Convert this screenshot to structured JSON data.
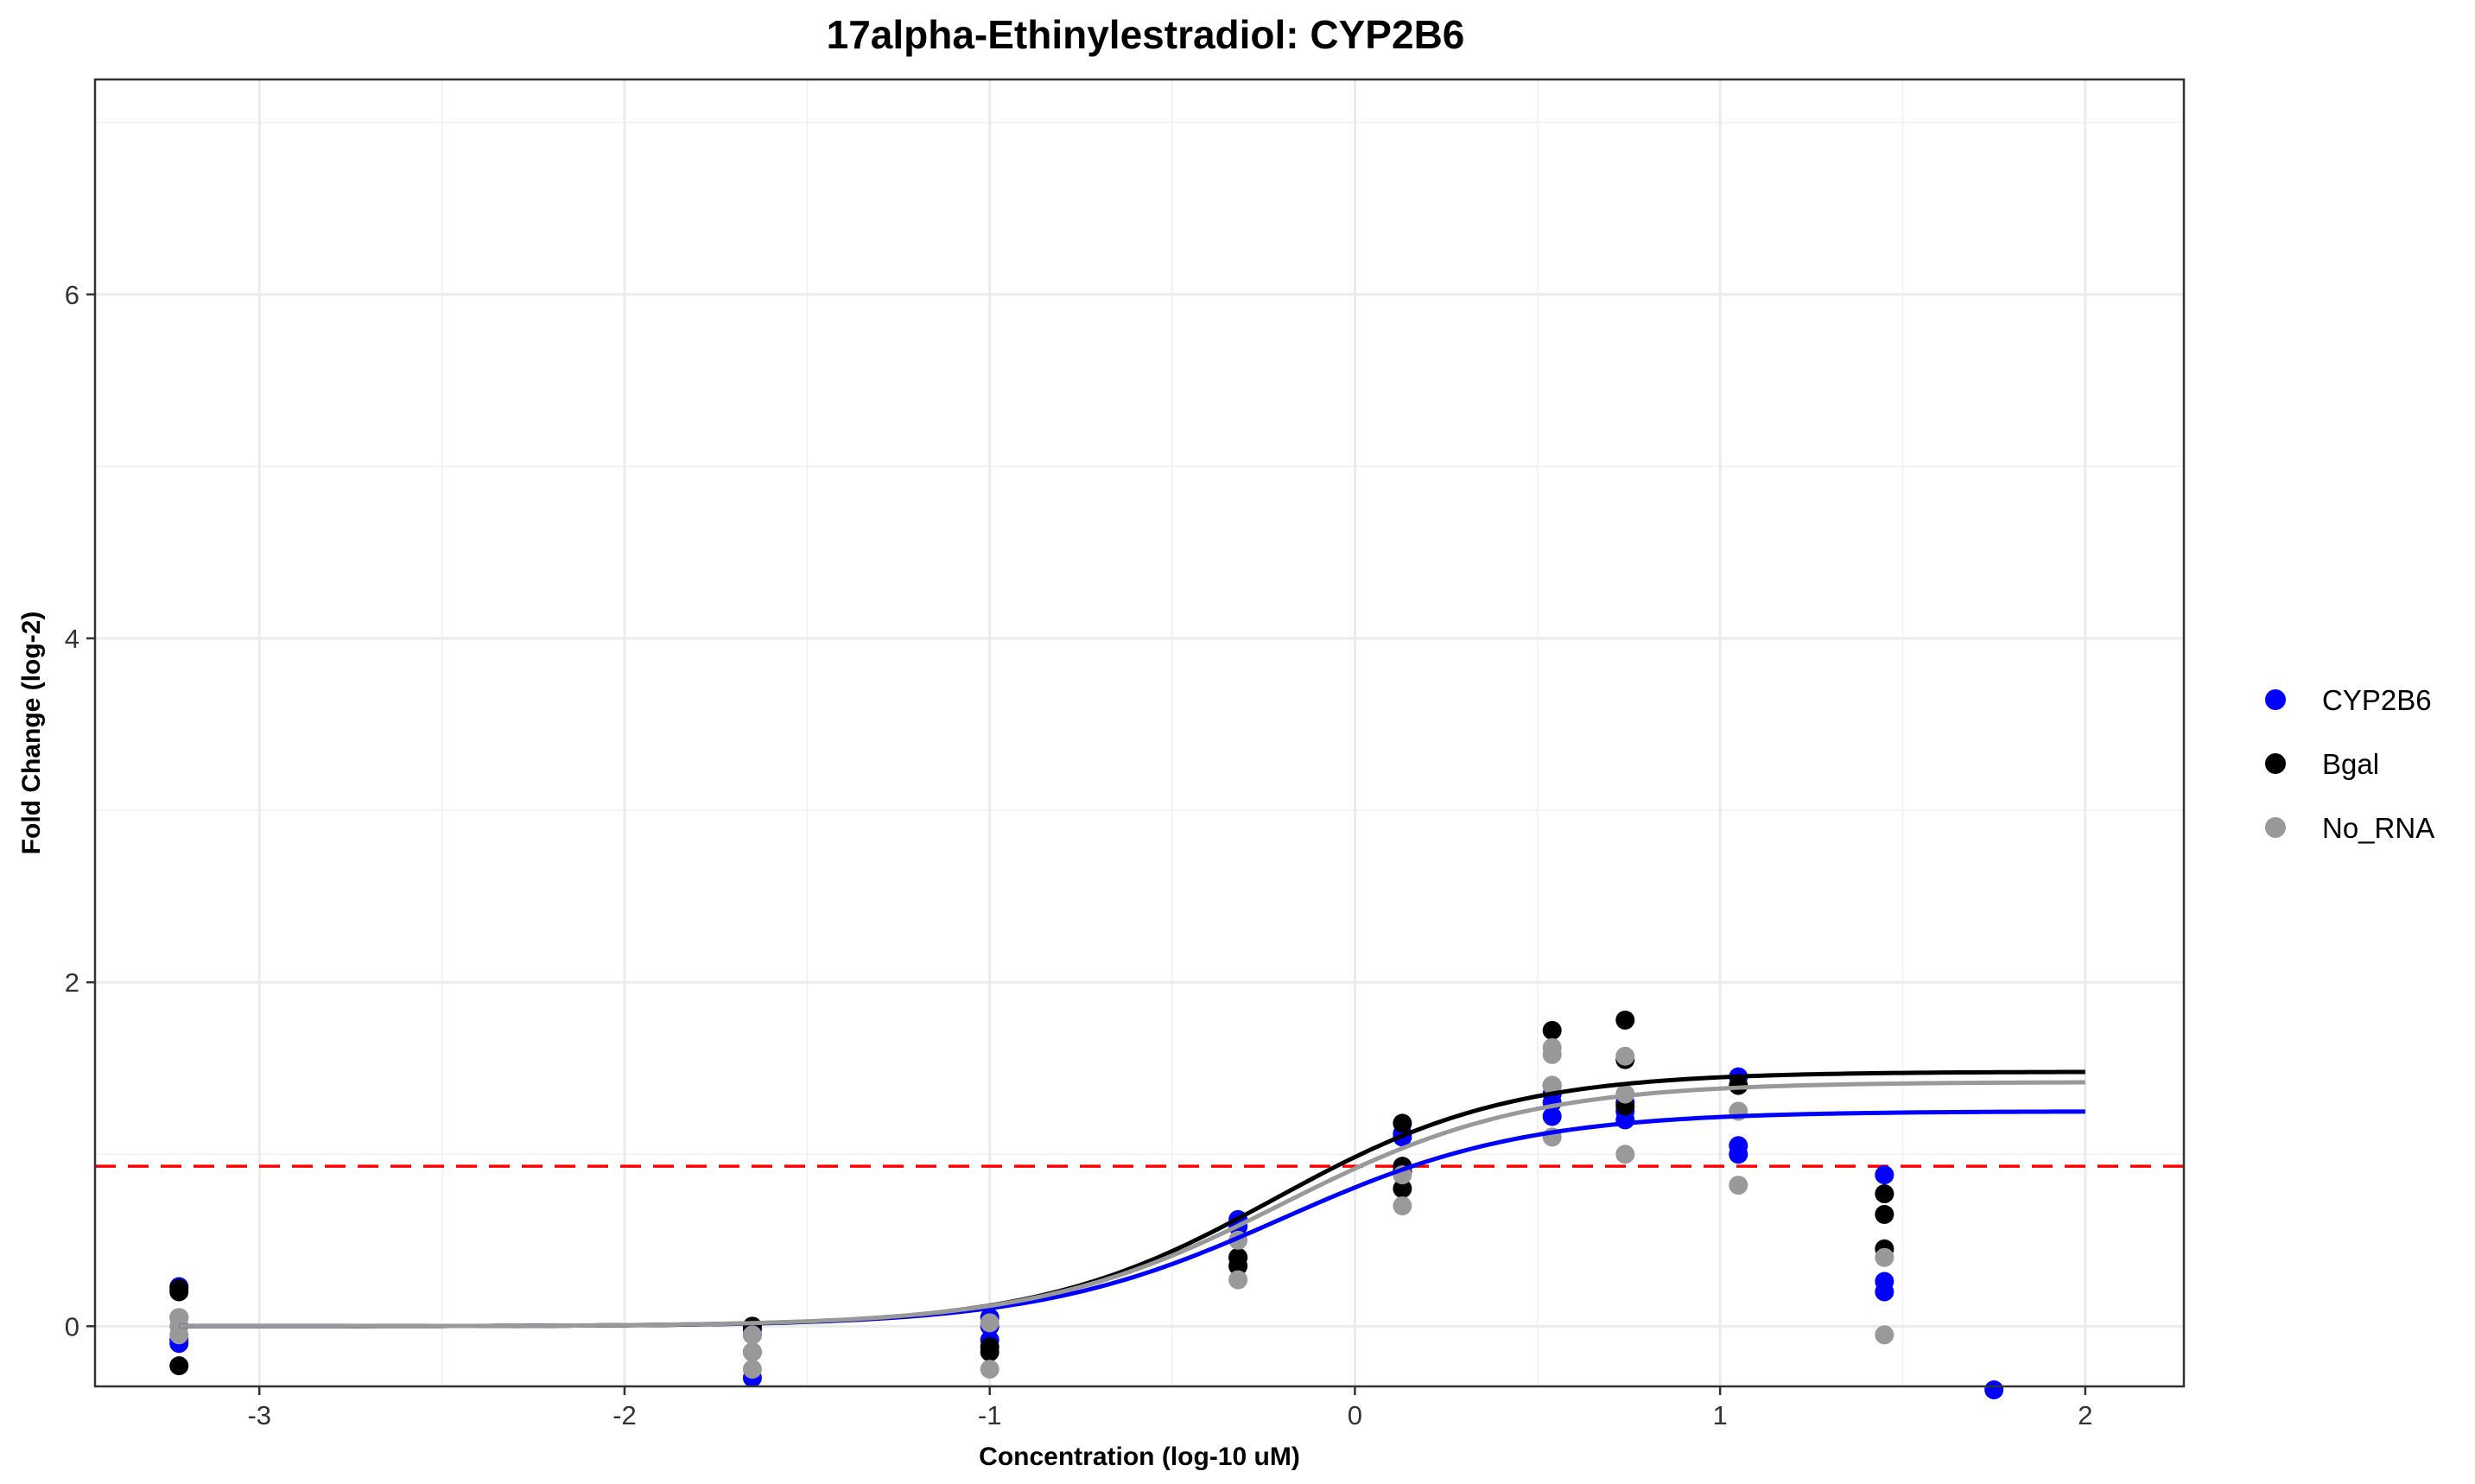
{
  "chart_data": {
    "type": "scatter",
    "title": "17alpha-Ethinylestradiol: CYP2B6",
    "xlabel": "Concentration (log-10 uM)",
    "ylabel": "Fold Change (log-2)",
    "xlim": [
      -3.45,
      2.27
    ],
    "ylim": [
      -0.35,
      7.25
    ],
    "x_ticks": [
      -3,
      -2,
      -1,
      0,
      1,
      2
    ],
    "x_tick_labels": [
      "-3",
      "-2",
      "-1",
      "0",
      "1",
      "2"
    ],
    "y_ticks": [
      0,
      2,
      4,
      6
    ],
    "y_tick_labels": [
      "0",
      "2",
      "4",
      "6"
    ],
    "grid": true,
    "legend_position": "right",
    "threshold": {
      "y": 0.93,
      "color": "#ff0000",
      "style": "dashed"
    },
    "series": [
      {
        "name": "CYP2B6",
        "color": "#0000ff",
        "points": [
          [
            -3.22,
            0.23
          ],
          [
            -3.22,
            -0.08
          ],
          [
            -3.22,
            -0.1
          ],
          [
            -3.22,
            0.05
          ],
          [
            -1.65,
            -0.3
          ],
          [
            -1.65,
            -0.15
          ],
          [
            -1.65,
            -0.02
          ],
          [
            -1.0,
            0.05
          ],
          [
            -1.0,
            -0.08
          ],
          [
            -1.0,
            0.0
          ],
          [
            -0.32,
            0.62
          ],
          [
            -0.32,
            0.58
          ],
          [
            -0.32,
            0.4
          ],
          [
            0.13,
            1.1
          ],
          [
            0.13,
            1.12
          ],
          [
            0.13,
            0.9
          ],
          [
            0.54,
            1.35
          ],
          [
            0.54,
            1.22
          ],
          [
            0.54,
            1.3
          ],
          [
            0.74,
            1.2
          ],
          [
            0.74,
            1.25
          ],
          [
            0.74,
            1.3
          ],
          [
            1.05,
            1.45
          ],
          [
            1.05,
            1.05
          ],
          [
            1.05,
            1.0
          ],
          [
            1.45,
            0.88
          ],
          [
            1.45,
            0.26
          ],
          [
            1.45,
            0.2
          ],
          [
            1.75,
            -0.37
          ]
        ],
        "fit": {
          "bottom": 0.0,
          "top": 1.25,
          "ec50": -0.2,
          "hill": 1.3,
          "xmax": 2.0
        }
      },
      {
        "name": "Bgal",
        "color": "#000000",
        "points": [
          [
            -3.22,
            0.2
          ],
          [
            -3.22,
            0.22
          ],
          [
            -3.22,
            -0.23
          ],
          [
            -1.65,
            0.0
          ],
          [
            -1.65,
            -0.05
          ],
          [
            -1.0,
            -0.12
          ],
          [
            -1.0,
            -0.15
          ],
          [
            -0.32,
            0.4
          ],
          [
            -0.32,
            0.35
          ],
          [
            0.13,
            1.18
          ],
          [
            0.13,
            0.93
          ],
          [
            0.13,
            0.9
          ],
          [
            0.13,
            0.8
          ],
          [
            0.54,
            1.72
          ],
          [
            0.54,
            1.4
          ],
          [
            0.74,
            1.78
          ],
          [
            0.74,
            1.55
          ],
          [
            0.74,
            1.28
          ],
          [
            1.05,
            1.4
          ],
          [
            1.45,
            0.77
          ],
          [
            1.45,
            0.65
          ],
          [
            1.45,
            0.45
          ]
        ],
        "fit": {
          "bottom": 0.0,
          "top": 1.48,
          "ec50": -0.22,
          "hill": 1.35,
          "xmax": 2.0
        }
      },
      {
        "name": "No_RNA",
        "color": "#999999",
        "points": [
          [
            -3.22,
            0.05
          ],
          [
            -3.22,
            0.0
          ],
          [
            -3.22,
            -0.05
          ],
          [
            -1.65,
            -0.05
          ],
          [
            -1.65,
            -0.15
          ],
          [
            -1.65,
            -0.25
          ],
          [
            -1.0,
            0.02
          ],
          [
            -1.0,
            -0.25
          ],
          [
            -0.32,
            0.5
          ],
          [
            -0.32,
            0.27
          ],
          [
            0.13,
            0.88
          ],
          [
            0.13,
            0.7
          ],
          [
            0.54,
            1.62
          ],
          [
            0.54,
            1.58
          ],
          [
            0.54,
            1.4
          ],
          [
            0.54,
            1.1
          ],
          [
            0.74,
            1.57
          ],
          [
            0.74,
            1.35
          ],
          [
            0.74,
            1.0
          ],
          [
            1.05,
            1.25
          ],
          [
            1.05,
            0.82
          ],
          [
            1.45,
            0.4
          ],
          [
            1.45,
            -0.05
          ]
        ],
        "fit": {
          "bottom": 0.0,
          "top": 1.42,
          "ec50": -0.2,
          "hill": 1.3,
          "xmax": 2.0
        }
      }
    ]
  }
}
